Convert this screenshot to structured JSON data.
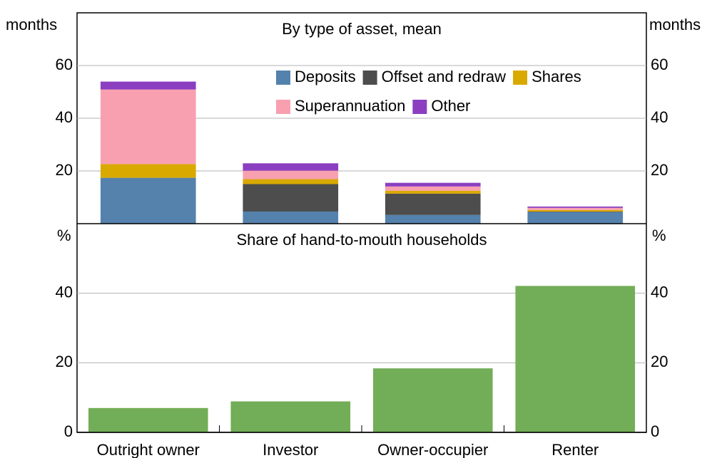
{
  "chart_data": [
    {
      "type": "stacked_bar",
      "title": "By type of asset, mean",
      "y_unit": "months",
      "ylim": [
        0,
        80
      ],
      "yticks": [
        20,
        40,
        60
      ],
      "grid": true,
      "series": [
        {
          "name": "Deposits",
          "color": "#5482ad",
          "values": [
            17.4,
            4.6,
            3.3,
            4.4
          ]
        },
        {
          "name": "Offset and redraw",
          "color": "#4d4d4d",
          "values": [
            0,
            10.4,
            8.1,
            0.2
          ]
        },
        {
          "name": "Shares",
          "color": "#d9a900",
          "values": [
            5.2,
            1.9,
            1.1,
            0.6
          ]
        },
        {
          "name": "Superannuation",
          "color": "#f8a0b0",
          "values": [
            28.3,
            3.2,
            1.6,
            0.8
          ]
        },
        {
          "name": "Other",
          "color": "#8b3fc0",
          "values": [
            3.0,
            2.8,
            1.4,
            0.5
          ]
        }
      ]
    },
    {
      "type": "bar",
      "title": "Share of hand-to-mouth households",
      "y_unit": "%",
      "categories": [
        "Outright owner",
        "Investor",
        "Owner-occupier",
        "Renter"
      ],
      "values": [
        7.0,
        8.9,
        18.4,
        42.1
      ],
      "color": "#72ad57",
      "ylim": [
        0,
        60
      ],
      "yticks": [
        0,
        20,
        40
      ],
      "grid": true
    }
  ]
}
